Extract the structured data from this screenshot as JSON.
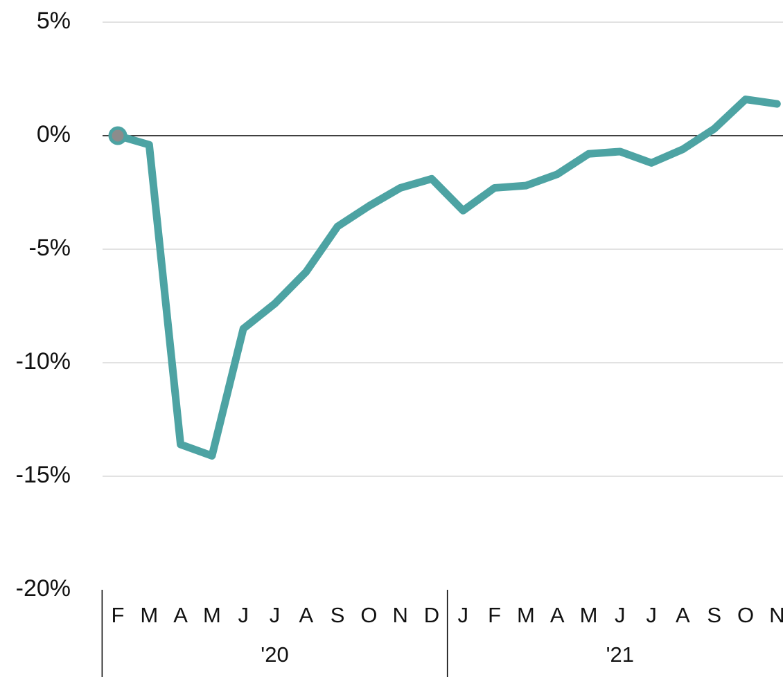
{
  "chart_data": {
    "type": "line",
    "categories": [
      "F",
      "M",
      "A",
      "M",
      "J",
      "J",
      "A",
      "S",
      "O",
      "N",
      "D",
      "J",
      "F",
      "M",
      "A",
      "M",
      "J",
      "J",
      "A",
      "S",
      "O",
      "N"
    ],
    "groups": [
      {
        "label": "'20",
        "start": 0,
        "end": 10
      },
      {
        "label": "'21",
        "start": 11,
        "end": 21
      }
    ],
    "series": [
      {
        "color": "#4da3a3",
        "values": [
          0,
          -0.4,
          -13.6,
          -14.1,
          -8.5,
          -7.4,
          -6.0,
          -4.0,
          -3.1,
          -2.3,
          -1.9,
          -3.3,
          -2.3,
          -2.2,
          -1.7,
          -0.8,
          -0.7,
          -1.2,
          -0.6,
          0.3,
          1.6,
          1.4
        ]
      }
    ],
    "ylim": [
      -20,
      5
    ],
    "yticks": [
      {
        "value": 5,
        "label": "5%"
      },
      {
        "value": 0,
        "label": "0%"
      },
      {
        "value": -5,
        "label": "-5%"
      },
      {
        "value": -10,
        "label": "-10%"
      },
      {
        "value": -15,
        "label": "-15%"
      },
      {
        "value": -20,
        "label": "-20%"
      }
    ],
    "grid": true
  }
}
